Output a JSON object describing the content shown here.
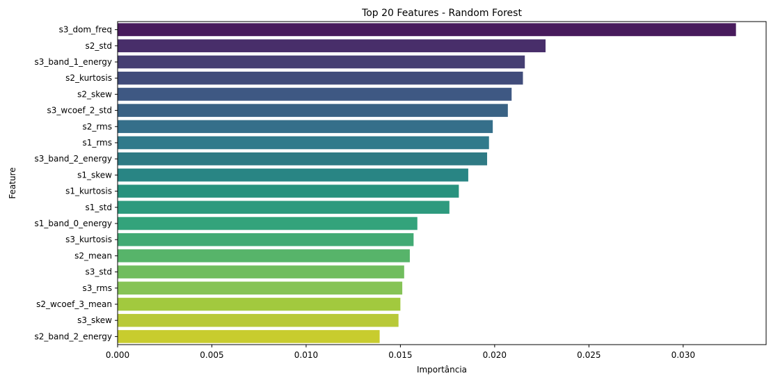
{
  "chart_data": {
    "type": "bar",
    "orientation": "horizontal",
    "title": "Top 20 Features - Random Forest",
    "xlabel": "Importância",
    "ylabel": "Feature",
    "xlim": [
      0,
      0.0344
    ],
    "xticks": [
      "0.000",
      "0.005",
      "0.010",
      "0.015",
      "0.020",
      "0.025",
      "0.030"
    ],
    "grid": false,
    "palette": "viridis",
    "categories": [
      "s3_dom_freq",
      "s2_std",
      "s3_band_1_energy",
      "s2_kurtosis",
      "s2_skew",
      "s3_wcoef_2_std",
      "s2_rms",
      "s1_rms",
      "s3_band_2_energy",
      "s1_skew",
      "s1_kurtosis",
      "s1_std",
      "s1_band_0_energy",
      "s3_kurtosis",
      "s2_mean",
      "s3_std",
      "s3_rms",
      "s2_wcoef_3_mean",
      "s3_skew",
      "s2_band_2_energy"
    ],
    "values": [
      0.0328,
      0.0227,
      0.0216,
      0.0215,
      0.0209,
      0.0207,
      0.0199,
      0.0197,
      0.0196,
      0.0186,
      0.0181,
      0.0176,
      0.0159,
      0.0157,
      0.0155,
      0.0152,
      0.0151,
      0.015,
      0.0149,
      0.0139
    ],
    "colors": [
      "#481b5c",
      "#482e6a",
      "#463f73",
      "#414c7a",
      "#3e5883",
      "#3a6284",
      "#356f8a",
      "#307a8b",
      "#2f7a84",
      "#298584",
      "#28927e",
      "#2e9a7e",
      "#33a37b",
      "#42aa74",
      "#57b46a",
      "#70bd5e",
      "#86c356",
      "#a2c93e",
      "#b8c938",
      "#c8cc2e"
    ]
  }
}
